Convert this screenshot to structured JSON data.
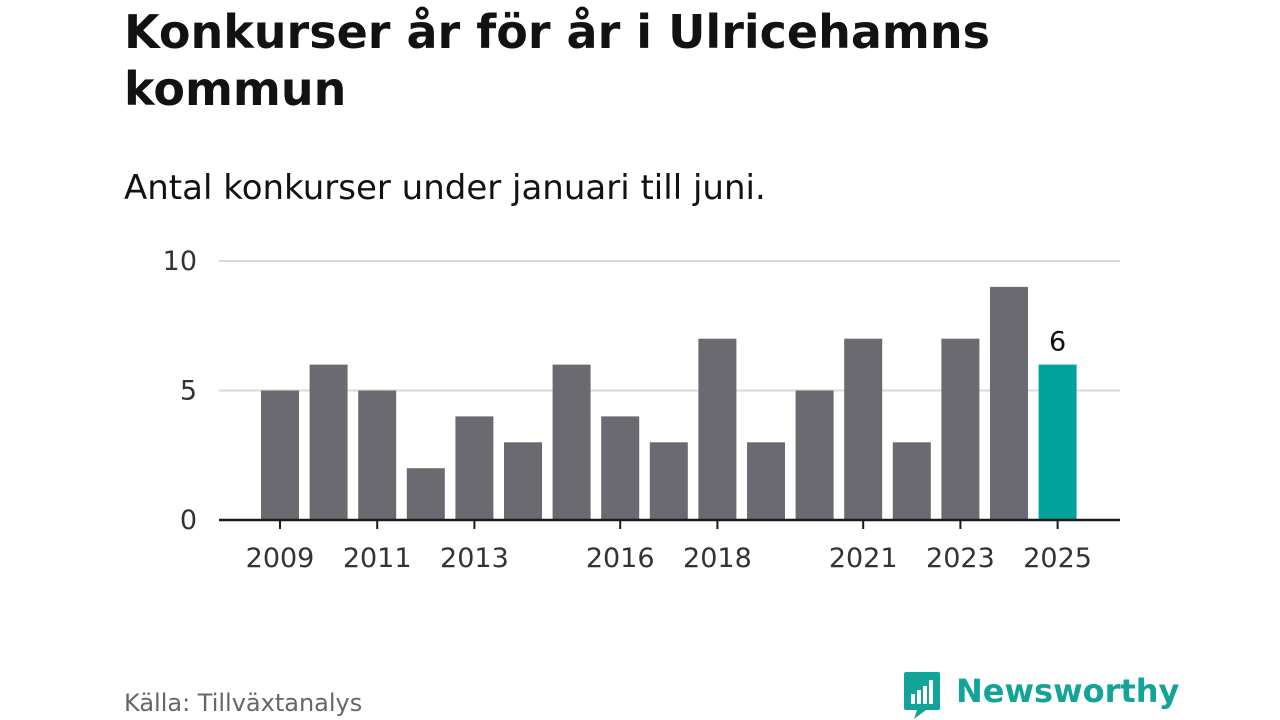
{
  "title": "Konkurser år för år i Ulricehamns kommun",
  "subtitle": "Antal konkurser under januari till juni.",
  "source": "Källa: Tillväxtanalys",
  "brand": {
    "name": "Newsworthy",
    "icon": "newsworthy-logo-icon",
    "color": "#12a399"
  },
  "colors": {
    "bar": "#6b6a70",
    "highlight": "#00a39b",
    "grid": "#d9d9d9",
    "axis": "#1a1a1a"
  },
  "chart_data": {
    "type": "bar",
    "title": "Konkurser år för år i Ulricehamns kommun",
    "subtitle": "Antal konkurser under januari till juni.",
    "xlabel": "",
    "ylabel": "",
    "categories": [
      "2009",
      "2010",
      "2011",
      "2012",
      "2013",
      "2014",
      "2015",
      "2016",
      "2017",
      "2018",
      "2019",
      "2020",
      "2021",
      "2022",
      "2023",
      "2024",
      "2025"
    ],
    "values": [
      5,
      6,
      5,
      2,
      4,
      3,
      6,
      4,
      3,
      7,
      3,
      5,
      7,
      3,
      7,
      9,
      6
    ],
    "x_tick_labels": [
      "2009",
      "2011",
      "2013",
      "2016",
      "2018",
      "2021",
      "2023",
      "2025"
    ],
    "y_ticks": [
      0,
      5,
      10
    ],
    "ylim": [
      0,
      10
    ],
    "grid": true,
    "highlight": {
      "category": "2025",
      "label": "6"
    }
  }
}
